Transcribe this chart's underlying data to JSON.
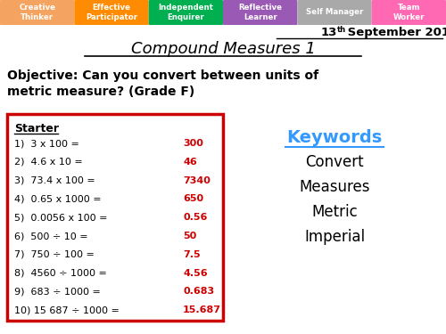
{
  "bg_color": "#ffffff",
  "title": "Compound Measures 1",
  "objective": "Objective: Can you convert between units of\nmetric measure? (Grade F)",
  "starter_label": "Starter",
  "questions": [
    "1)  3 x 100 =",
    "2)  4.6 x 10 =",
    "3)  73.4 x 100 =",
    "4)  0.65 x 1000 =",
    "5)  0.0056 x 100 =",
    "6)  500 ÷ 10 =",
    "7)  750 ÷ 100 =",
    "8)  4560 ÷ 1000 =",
    "9)  683 ÷ 1000 =",
    "10) 15 687 ÷ 1000 ="
  ],
  "answers": [
    "300",
    "46",
    "7340",
    "650",
    "0.56",
    "50",
    "7.5",
    "4.56",
    "0.683",
    "15.687"
  ],
  "answer_color": "#cc0000",
  "keywords_title": "Keywords",
  "keywords": [
    "Convert",
    "Measures",
    "Metric",
    "Imperial"
  ],
  "keywords_color": "#3399ff",
  "tab_labels": [
    "Creative\nThinker",
    "Effective\nParticipator",
    "Independent\nEnquirer",
    "Reflective\nLearner",
    "Self Manager",
    "Team\nWorker"
  ],
  "tab_colors": [
    "#f4a460",
    "#ff8c00",
    "#00b050",
    "#9b59b6",
    "#a9a9a9",
    "#ff69b4"
  ],
  "tab_text_color": "#ffffff",
  "box_edge_color": "#cc0000",
  "box_fill_color": "#ffffff"
}
